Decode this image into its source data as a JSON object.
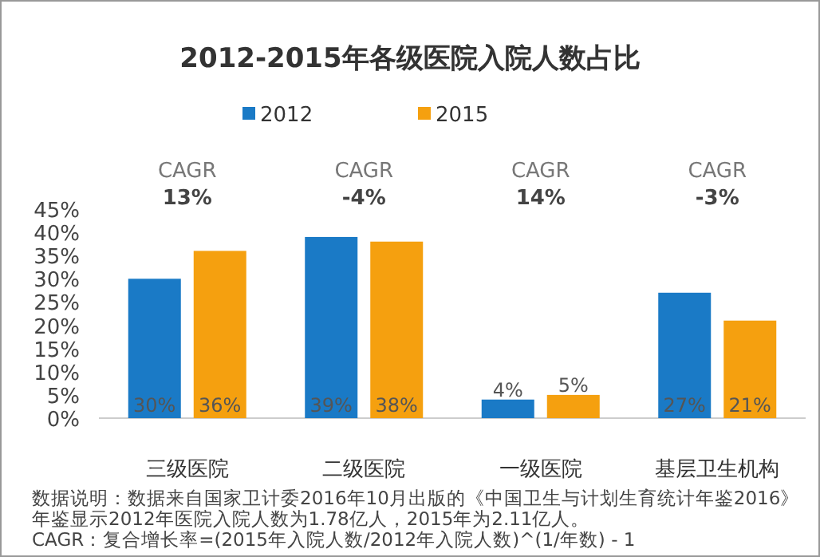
{
  "chart_data": {
    "type": "bar",
    "title": "2012-2015年各级医院入院人数占比",
    "categories": [
      "三级医院",
      "二级医院",
      "一级医院",
      "基层卫生机构"
    ],
    "series": [
      {
        "name": "2012",
        "color": "#1a7ac6",
        "values": [
          30,
          39,
          4,
          27
        ],
        "value_labels": [
          "30%",
          "39%",
          "4%",
          "27%"
        ]
      },
      {
        "name": "2015",
        "color": "#f5a00f",
        "values": [
          36,
          38,
          5,
          21
        ],
        "value_labels": [
          "36%",
          "38%",
          "5%",
          "21%"
        ]
      }
    ],
    "ylim": [
      0,
      45
    ],
    "yticks": [
      {
        "value": 0,
        "label": "0%"
      },
      {
        "value": 5,
        "label": "5%"
      },
      {
        "value": 10,
        "label": "10%"
      },
      {
        "value": 15,
        "label": "15%"
      },
      {
        "value": 20,
        "label": "20%"
      },
      {
        "value": 25,
        "label": "25%"
      },
      {
        "value": 30,
        "label": "30%"
      },
      {
        "value": 35,
        "label": "35%"
      },
      {
        "value": 40,
        "label": "40%"
      },
      {
        "value": 45,
        "label": "45%"
      }
    ],
    "legend": "top",
    "annotations": [
      "CAGR **13%**",
      "CAGR **-4%**",
      "CAGR **14%**",
      "CAGR **-3%**",
      "数据说明：数据来自国家卫计委2016年10月出版的《中国卫生与计划生育统计年鉴2016》",
      "年鉴显示2012年医院入院人数为1.78亿人，2015年为2.11亿人。",
      "CAGR：复合增长率=(2015年入院人数/2012年入院人数)^(1/年数) - 1"
    ]
  }
}
